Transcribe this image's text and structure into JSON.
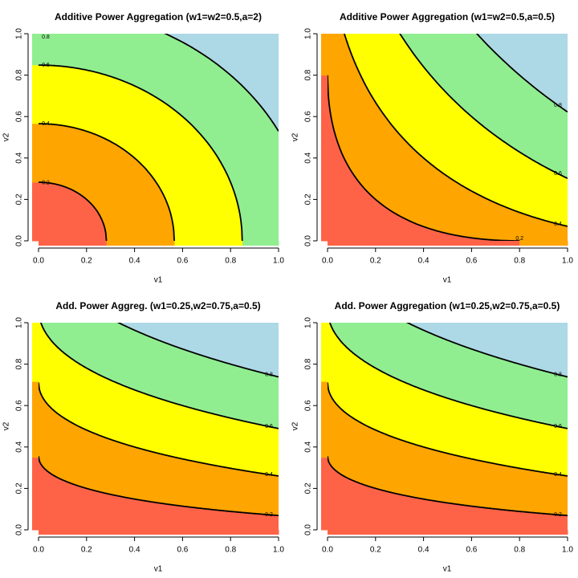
{
  "chart_data": [
    {
      "type": "contour",
      "title": "Additive Power Aggregation (w1=w2=0.5,a=2)",
      "x_label": "v1",
      "y_label": "v2",
      "w1": 0.5,
      "w2": 0.5,
      "a": 2,
      "levels": [
        0.2,
        0.4,
        0.6,
        0.8
      ],
      "colors": [
        "#ff6347",
        "#ffa500",
        "#ffff00",
        "#90ee90",
        "#add8e6"
      ],
      "xlim": [
        0,
        1
      ],
      "ylim": [
        0,
        1
      ],
      "xticks": [
        {
          "value": 0,
          "label": "0.0"
        },
        0.2,
        0.4,
        0.6,
        0.8,
        {
          "value": 1,
          "label": "1.0"
        }
      ],
      "yticks": [
        {
          "value": 0,
          "label": "0.0"
        },
        0.2,
        0.4,
        0.6,
        0.8,
        {
          "value": 1,
          "label": "1.0"
        }
      ],
      "contour_label_side": "left"
    },
    {
      "type": "contour",
      "title": "Additive Power Aggregation (w1=w2=0.5,a=0.5)",
      "x_label": "v1",
      "y_label": "v2",
      "w1": 0.5,
      "w2": 0.5,
      "a": 0.5,
      "levels": [
        0.2,
        0.4,
        0.6,
        0.8
      ],
      "colors": [
        "#ff6347",
        "#ffa500",
        "#ffff00",
        "#90ee90",
        "#add8e6"
      ],
      "xlim": [
        0,
        1
      ],
      "ylim": [
        0,
        1
      ],
      "xticks": [
        {
          "value": 0,
          "label": "0.0"
        },
        0.2,
        0.4,
        0.6,
        0.8,
        {
          "value": 1,
          "label": "1.0"
        }
      ],
      "yticks": [
        {
          "value": 0,
          "label": "0.0"
        },
        0.2,
        0.4,
        0.6,
        0.8,
        {
          "value": 1,
          "label": "1.0"
        }
      ],
      "contour_label_side": "right"
    },
    {
      "type": "contour",
      "title": "Add. Power Aggreg. (w1=0.25,w2=0.75,a=0.5)",
      "x_label": "v1",
      "y_label": "v2",
      "w1": 0.25,
      "w2": 0.75,
      "a": 0.5,
      "levels": [
        0.2,
        0.4,
        0.6,
        0.8
      ],
      "colors": [
        "#ff6347",
        "#ffa500",
        "#ffff00",
        "#90ee90",
        "#add8e6"
      ],
      "xlim": [
        0,
        1
      ],
      "ylim": [
        0,
        1
      ],
      "xticks": [
        {
          "value": 0,
          "label": "0.0"
        },
        0.2,
        0.4,
        0.6,
        0.8,
        {
          "value": 1,
          "label": "1.0"
        }
      ],
      "yticks": [
        {
          "value": 0,
          "label": "0.0"
        },
        0.2,
        0.4,
        0.6,
        0.8,
        {
          "value": 1,
          "label": "1.0"
        }
      ],
      "contour_label_side": "right"
    },
    {
      "type": "contour",
      "title": "Add. Power Aggregation (w1=0.25,w2=0.75,a=0.5)",
      "x_label": "v1",
      "y_label": "v2",
      "w1": 0.25,
      "w2": 0.75,
      "a": 0.5,
      "levels": [
        0.2,
        0.4,
        0.6,
        0.8
      ],
      "colors": [
        "#ff6347",
        "#ffa500",
        "#ffff00",
        "#90ee90",
        "#add8e6"
      ],
      "xlim": [
        0,
        1
      ],
      "ylim": [
        0,
        1
      ],
      "xticks": [
        {
          "value": 0,
          "label": "0.0"
        },
        0.2,
        0.4,
        0.6,
        0.8,
        {
          "value": 1,
          "label": "1.0"
        }
      ],
      "yticks": [
        {
          "value": 0,
          "label": "0.0"
        },
        0.2,
        0.4,
        0.6,
        0.8,
        {
          "value": 1,
          "label": "1.0"
        }
      ],
      "contour_label_side": "right"
    }
  ]
}
